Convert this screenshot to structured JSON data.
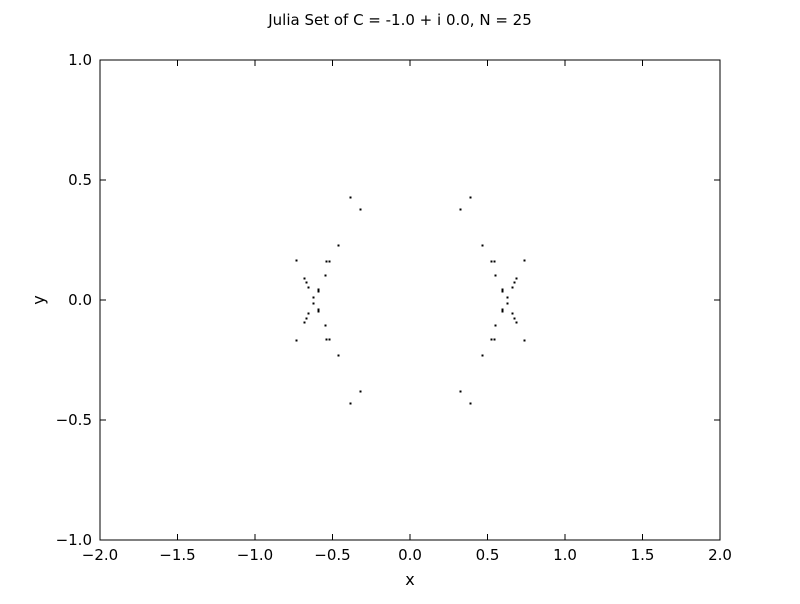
{
  "chart_data": {
    "type": "scatter",
    "title": "Julia Set of C = -1.0 + i 0.0, N = 25",
    "xlabel": "x",
    "ylabel": "y",
    "xlim": [
      -2.0,
      2.0
    ],
    "ylim": [
      -1.0,
      1.0
    ],
    "c_real": -1.0,
    "c_imag": 0.0,
    "iterations": 25,
    "escape_radius": 2.0,
    "xticks": [
      {
        "value": -2.0,
        "label": "−2.0"
      },
      {
        "value": -1.5,
        "label": "−1.5"
      },
      {
        "value": -1.0,
        "label": "−1.0"
      },
      {
        "value": -0.5,
        "label": "−0.5"
      },
      {
        "value": 0.0,
        "label": "0.0"
      },
      {
        "value": 0.5,
        "label": "0.5"
      },
      {
        "value": 1.0,
        "label": "1.0"
      },
      {
        "value": 1.5,
        "label": "1.5"
      },
      {
        "value": 2.0,
        "label": "2.0"
      }
    ],
    "yticks": [
      {
        "value": -1.0,
        "label": "−1.0"
      },
      {
        "value": -0.5,
        "label": "−0.5"
      },
      {
        "value": 0.0,
        "label": "0.0"
      },
      {
        "value": 0.5,
        "label": "0.5"
      },
      {
        "value": 1.0,
        "label": "1.0"
      }
    ],
    "grid": false,
    "legend": "none",
    "colors": {
      "points": "#000000",
      "axes": "#000000",
      "background": "#ffffff"
    }
  }
}
